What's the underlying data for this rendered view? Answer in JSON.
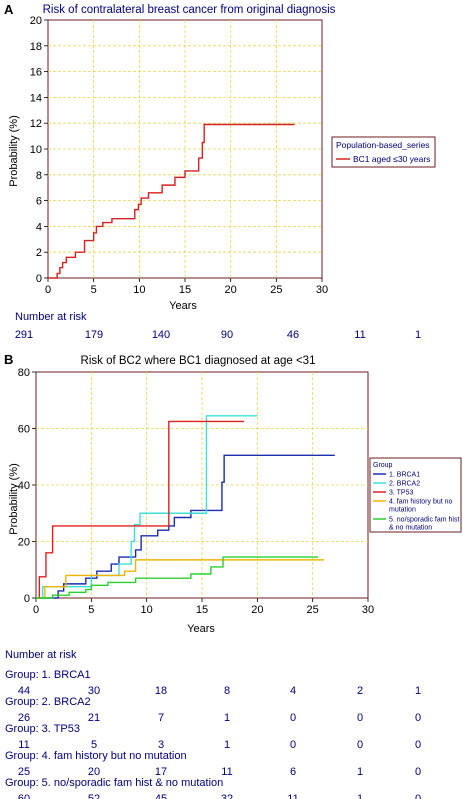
{
  "panel_a": {
    "letter": "A",
    "number_at_risk_label": "Number at risk",
    "number_at_risk": [
      "291",
      "179",
      "140",
      "90",
      "46",
      "11",
      "1"
    ]
  },
  "panel_b": {
    "letter": "B",
    "number_at_risk_label": "Number at risk",
    "groups": [
      {
        "label": "Group: 1. BRCA1",
        "counts": [
          "44",
          "30",
          "18",
          "8",
          "4",
          "2",
          "1"
        ]
      },
      {
        "label": "Group: 2. BRCA2",
        "counts": [
          "26",
          "21",
          "7",
          "1",
          "0",
          "0",
          "0"
        ]
      },
      {
        "label": "Group: 3. TP53",
        "counts": [
          "11",
          "5",
          "3",
          "1",
          "0",
          "0",
          "0"
        ]
      },
      {
        "label": "Group: 4. fam history but no mutation",
        "counts": [
          "25",
          "20",
          "17",
          "11",
          "6",
          "1",
          "0"
        ]
      },
      {
        "label": "Group: 5. no/sporadic fam hist & no mutation",
        "counts": [
          "60",
          "52",
          "45",
          "32",
          "11",
          "1",
          "0"
        ]
      }
    ]
  },
  "colors": {
    "title": "#000080",
    "grid": "#e8d44d",
    "axis_frame": "#6b1f1f",
    "panel_a_series": "#d62222",
    "brca1": "#1c2fb0",
    "brca2": "#3fe0d8",
    "tp53": "#e02020",
    "fam_history": "#f0b400",
    "sporadic": "#2bd12b"
  },
  "chart_data": [
    {
      "type": "line",
      "step": true,
      "title": "Risk of contralateral breast cancer from original diagnosis",
      "xlabel": "Years",
      "ylabel": "Probability (%)",
      "xlim": [
        0,
        30
      ],
      "ylim": [
        0,
        20
      ],
      "xticks": [
        0,
        5,
        10,
        15,
        20,
        25,
        30
      ],
      "yticks": [
        0,
        2,
        4,
        6,
        8,
        10,
        12,
        14,
        16,
        18,
        20
      ],
      "grid": true,
      "legend_title": "Population-based_series",
      "legend_position": "right",
      "series": [
        {
          "name": "BC1 aged ≤30 years",
          "x": [
            0,
            1,
            1.3,
            1.6,
            2.0,
            2.5,
            3.0,
            4.0,
            5.0,
            5.3,
            6.0,
            7.0,
            8.0,
            9.5,
            9.9,
            10.2,
            11.0,
            12.5,
            13.9,
            15.0,
            16.5,
            16.9,
            17.1,
            27.0
          ],
          "y": [
            0,
            0.35,
            0.8,
            1.2,
            1.6,
            1.6,
            2.0,
            2.9,
            3.5,
            4.0,
            4.3,
            4.6,
            4.6,
            5.3,
            5.7,
            6.2,
            6.6,
            7.2,
            7.8,
            8.3,
            9.3,
            10.5,
            11.9,
            11.9
          ]
        }
      ]
    },
    {
      "type": "line",
      "step": true,
      "title": "Risk of BC2 where BC1 diagnosed at age <31",
      "xlabel": "Years",
      "ylabel": "Probability (%)",
      "xlim": [
        0,
        30
      ],
      "ylim": [
        0,
        80
      ],
      "xticks": [
        0,
        5,
        10,
        15,
        20,
        25,
        30
      ],
      "yticks": [
        0,
        20,
        40,
        60,
        80
      ],
      "grid": true,
      "legend_title": "Group",
      "legend_position": "right",
      "series": [
        {
          "name": "1. BRCA1",
          "x": [
            0,
            2.0,
            2.5,
            4.5,
            5.5,
            6.8,
            7.5,
            9.0,
            9.5,
            11.0,
            12.0,
            12.5,
            14.0,
            16.8,
            17.0,
            27.0
          ],
          "y": [
            0,
            2.5,
            5.0,
            7.0,
            9.5,
            12.0,
            14.5,
            17.0,
            22.0,
            24.0,
            25.5,
            28.5,
            31.0,
            41.0,
            50.5,
            50.5
          ]
        },
        {
          "name": "2. BRCA2",
          "x": [
            0,
            0.6,
            1.1,
            3.5,
            5.0,
            7.5,
            8.6,
            8.9,
            9.4,
            12.0,
            14.2,
            15.0,
            15.4,
            20.0
          ],
          "y": [
            0,
            4.0,
            4.0,
            4.0,
            8.0,
            12.0,
            20.0,
            26.0,
            30.0,
            30.0,
            30.0,
            30.0,
            64.5,
            64.5
          ]
        },
        {
          "name": "3. TP53",
          "x": [
            0,
            0.3,
            0.9,
            1.5,
            12.0,
            18.8
          ],
          "y": [
            0,
            7.5,
            16.0,
            25.5,
            62.5,
            62.5
          ]
        },
        {
          "name": "4. fam history but no mutation",
          "x": [
            0,
            0.8,
            1.3,
            2.7,
            3.5,
            8.0,
            9.0,
            12.0,
            15.0,
            26.0
          ],
          "y": [
            0,
            4.0,
            4.0,
            8.0,
            8.0,
            9.5,
            13.5,
            13.5,
            13.5,
            13.5
          ]
        },
        {
          "name": "5. no/sporadic fam hist & no mutation",
          "x": [
            0,
            1.5,
            3.0,
            4.5,
            5.0,
            6.5,
            9.0,
            14.0,
            15.8,
            16.9,
            25.5
          ],
          "y": [
            0,
            1.0,
            2.0,
            3.0,
            4.5,
            5.5,
            7.0,
            8.5,
            11.0,
            14.5,
            14.5
          ]
        }
      ]
    }
  ]
}
